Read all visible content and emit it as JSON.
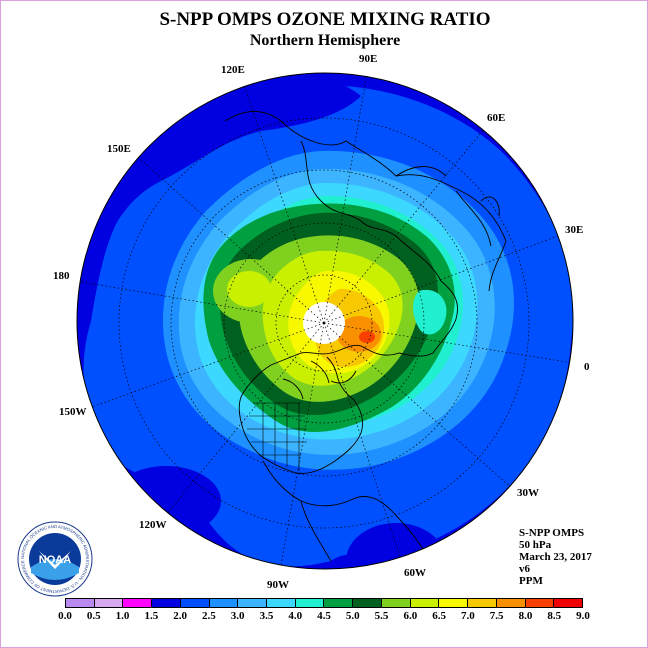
{
  "title": "S-NPP OMPS OZONE MIXING RATIO",
  "subtitle": "Northern Hemisphere",
  "longitude_labels": [
    "90E",
    "60E",
    "30E",
    "0",
    "30W",
    "60W",
    "90W",
    "120W",
    "150W",
    "180",
    "150E",
    "120E"
  ],
  "info": {
    "instrument": "S-NPP OMPS",
    "pressure": "50 hPa",
    "date": "March 23, 2017",
    "version": "v6",
    "units": "PPM"
  },
  "logo": {
    "text": "NOAA",
    "ring_text": "NATIONAL OCEANIC AND ATMOSPHERIC ADMINISTRATION · U.S. DEPARTMENT OF COMMERCE"
  },
  "colorbar": {
    "ticks": [
      "0.0",
      "0.5",
      "1.0",
      "1.5",
      "2.0",
      "2.5",
      "3.0",
      "3.5",
      "4.0",
      "4.5",
      "5.0",
      "5.5",
      "6.0",
      "6.5",
      "7.0",
      "7.5",
      "8.0",
      "8.5",
      "9.0"
    ],
    "colors": [
      "#b98af0",
      "#d8a8f0",
      "#ff00ff",
      "#0000e0",
      "#0050ff",
      "#1e90ff",
      "#3cb4ff",
      "#3cd8ff",
      "#20f0d0",
      "#00a040",
      "#006020",
      "#80d020",
      "#c8f000",
      "#f8f800",
      "#f8c800",
      "#f89000",
      "#f84000",
      "#f00000",
      "#8b5a2b"
    ]
  },
  "colors": {
    "ocean_background": "#0050ff",
    "polar_hole": "#ffffff",
    "frame_border": "#d9a0d9"
  }
}
